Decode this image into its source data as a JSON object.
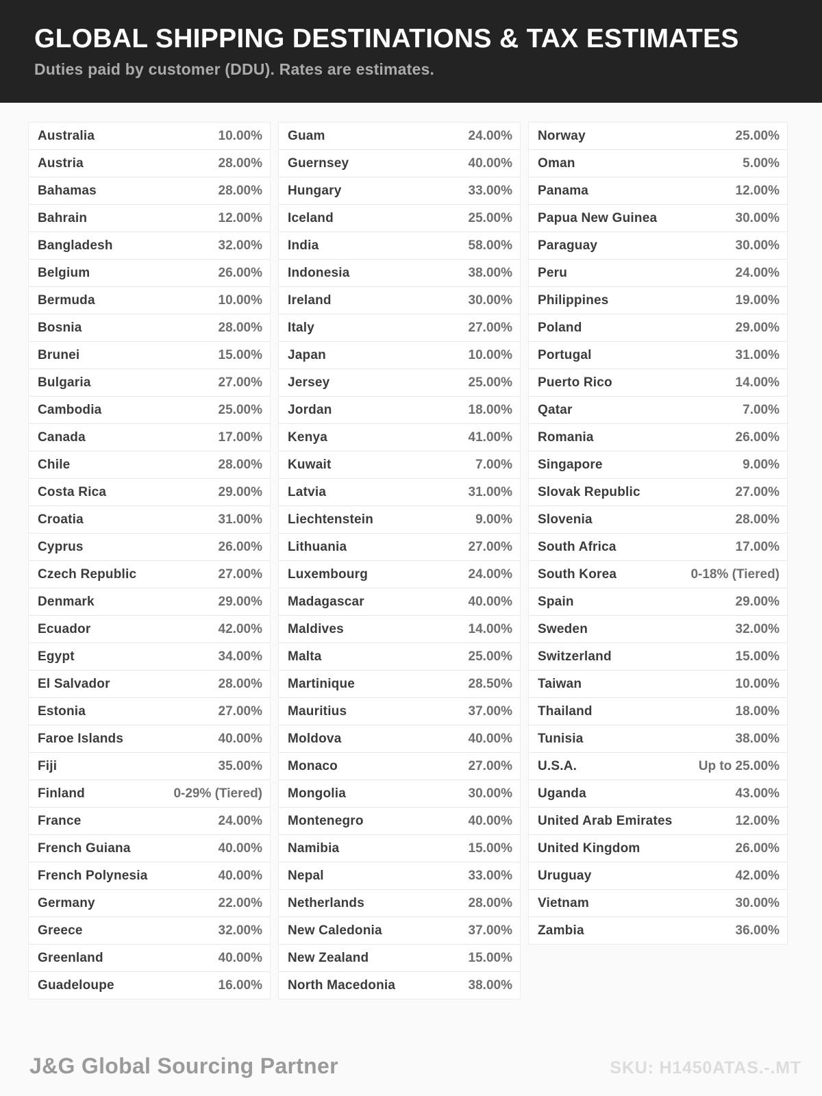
{
  "header": {
    "title": "GLOBAL SHIPPING DESTINATIONS & TAX ESTIMATES",
    "subtitle": "Duties paid by customer (DDU). Rates are estimates."
  },
  "table": {
    "columns": [
      {
        "rows": [
          {
            "country": "Australia",
            "rate": "10.00%"
          },
          {
            "country": "Austria",
            "rate": "28.00%"
          },
          {
            "country": "Bahamas",
            "rate": "28.00%"
          },
          {
            "country": "Bahrain",
            "rate": "12.00%"
          },
          {
            "country": "Bangladesh",
            "rate": "32.00%"
          },
          {
            "country": "Belgium",
            "rate": "26.00%"
          },
          {
            "country": "Bermuda",
            "rate": "10.00%"
          },
          {
            "country": "Bosnia",
            "rate": "28.00%"
          },
          {
            "country": "Brunei",
            "rate": "15.00%"
          },
          {
            "country": "Bulgaria",
            "rate": "27.00%"
          },
          {
            "country": "Cambodia",
            "rate": "25.00%"
          },
          {
            "country": "Canada",
            "rate": "17.00%"
          },
          {
            "country": "Chile",
            "rate": "28.00%"
          },
          {
            "country": "Costa Rica",
            "rate": "29.00%"
          },
          {
            "country": "Croatia",
            "rate": "31.00%"
          },
          {
            "country": "Cyprus",
            "rate": "26.00%"
          },
          {
            "country": "Czech Republic",
            "rate": "27.00%"
          },
          {
            "country": "Denmark",
            "rate": "29.00%"
          },
          {
            "country": "Ecuador",
            "rate": "42.00%"
          },
          {
            "country": "Egypt",
            "rate": "34.00%"
          },
          {
            "country": "El Salvador",
            "rate": "28.00%"
          },
          {
            "country": "Estonia",
            "rate": "27.00%"
          },
          {
            "country": "Faroe Islands",
            "rate": "40.00%"
          },
          {
            "country": "Fiji",
            "rate": "35.00%"
          },
          {
            "country": "Finland",
            "rate": "0-29% (Tiered)"
          },
          {
            "country": "France",
            "rate": "24.00%"
          },
          {
            "country": "French Guiana",
            "rate": "40.00%"
          },
          {
            "country": "French Polynesia",
            "rate": "40.00%"
          },
          {
            "country": "Germany",
            "rate": "22.00%"
          },
          {
            "country": "Greece",
            "rate": "32.00%"
          },
          {
            "country": "Greenland",
            "rate": "40.00%"
          },
          {
            "country": "Guadeloupe",
            "rate": "16.00%"
          }
        ]
      },
      {
        "rows": [
          {
            "country": "Guam",
            "rate": "24.00%"
          },
          {
            "country": "Guernsey",
            "rate": "40.00%"
          },
          {
            "country": "Hungary",
            "rate": "33.00%"
          },
          {
            "country": "Iceland",
            "rate": "25.00%"
          },
          {
            "country": "India",
            "rate": "58.00%"
          },
          {
            "country": "Indonesia",
            "rate": "38.00%"
          },
          {
            "country": "Ireland",
            "rate": "30.00%"
          },
          {
            "country": "Italy",
            "rate": "27.00%"
          },
          {
            "country": "Japan",
            "rate": "10.00%"
          },
          {
            "country": "Jersey",
            "rate": "25.00%"
          },
          {
            "country": "Jordan",
            "rate": "18.00%"
          },
          {
            "country": "Kenya",
            "rate": "41.00%"
          },
          {
            "country": "Kuwait",
            "rate": "7.00%"
          },
          {
            "country": "Latvia",
            "rate": "31.00%"
          },
          {
            "country": "Liechtenstein",
            "rate": "9.00%"
          },
          {
            "country": "Lithuania",
            "rate": "27.00%"
          },
          {
            "country": "Luxembourg",
            "rate": "24.00%"
          },
          {
            "country": "Madagascar",
            "rate": "40.00%"
          },
          {
            "country": "Maldives",
            "rate": "14.00%"
          },
          {
            "country": "Malta",
            "rate": "25.00%"
          },
          {
            "country": "Martinique",
            "rate": "28.50%"
          },
          {
            "country": "Mauritius",
            "rate": "37.00%"
          },
          {
            "country": "Moldova",
            "rate": "40.00%"
          },
          {
            "country": "Monaco",
            "rate": "27.00%"
          },
          {
            "country": "Mongolia",
            "rate": "30.00%"
          },
          {
            "country": "Montenegro",
            "rate": "40.00%"
          },
          {
            "country": "Namibia",
            "rate": "15.00%"
          },
          {
            "country": "Nepal",
            "rate": "33.00%"
          },
          {
            "country": "Netherlands",
            "rate": "28.00%"
          },
          {
            "country": "New Caledonia",
            "rate": "37.00%"
          },
          {
            "country": "New Zealand",
            "rate": "15.00%"
          },
          {
            "country": "North Macedonia",
            "rate": "38.00%"
          }
        ]
      },
      {
        "rows": [
          {
            "country": "Norway",
            "rate": "25.00%"
          },
          {
            "country": "Oman",
            "rate": "5.00%"
          },
          {
            "country": "Panama",
            "rate": "12.00%"
          },
          {
            "country": "Papua New Guinea",
            "rate": "30.00%"
          },
          {
            "country": "Paraguay",
            "rate": "30.00%"
          },
          {
            "country": "Peru",
            "rate": "24.00%"
          },
          {
            "country": "Philippines",
            "rate": "19.00%"
          },
          {
            "country": "Poland",
            "rate": "29.00%"
          },
          {
            "country": "Portugal",
            "rate": "31.00%"
          },
          {
            "country": "Puerto Rico",
            "rate": "14.00%"
          },
          {
            "country": "Qatar",
            "rate": "7.00%"
          },
          {
            "country": "Romania",
            "rate": "26.00%"
          },
          {
            "country": "Singapore",
            "rate": "9.00%"
          },
          {
            "country": "Slovak Republic",
            "rate": "27.00%"
          },
          {
            "country": "Slovenia",
            "rate": "28.00%"
          },
          {
            "country": "South Africa",
            "rate": "17.00%"
          },
          {
            "country": "South Korea",
            "rate": "0-18% (Tiered)"
          },
          {
            "country": "Spain",
            "rate": "29.00%"
          },
          {
            "country": "Sweden",
            "rate": "32.00%"
          },
          {
            "country": "Switzerland",
            "rate": "15.00%"
          },
          {
            "country": "Taiwan",
            "rate": "10.00%"
          },
          {
            "country": "Thailand",
            "rate": "18.00%"
          },
          {
            "country": "Tunisia",
            "rate": "38.00%"
          },
          {
            "country": "U.S.A.",
            "rate": "Up to 25.00%"
          },
          {
            "country": "Uganda",
            "rate": "43.00%"
          },
          {
            "country": "United Arab Emirates",
            "rate": "12.00%"
          },
          {
            "country": "United Kingdom",
            "rate": "26.00%"
          },
          {
            "country": "Uruguay",
            "rate": "42.00%"
          },
          {
            "country": "Vietnam",
            "rate": "30.00%"
          },
          {
            "country": "Zambia",
            "rate": "36.00%"
          }
        ]
      }
    ]
  },
  "footer": {
    "brand": "J&G Global Sourcing Partner",
    "sku": "SKU: H1450ATAS.-.MT"
  },
  "colors": {
    "header_bg": "#232323",
    "title_text": "#ffffff",
    "subtitle_text": "#ababab",
    "row_bg": "#ffffff",
    "row_border": "#e8e8e8",
    "country_text": "#3b3b3b",
    "rate_text": "#6e6e6e",
    "brand_text": "#9a9a9a",
    "sku_text": "#dcdcdc"
  }
}
